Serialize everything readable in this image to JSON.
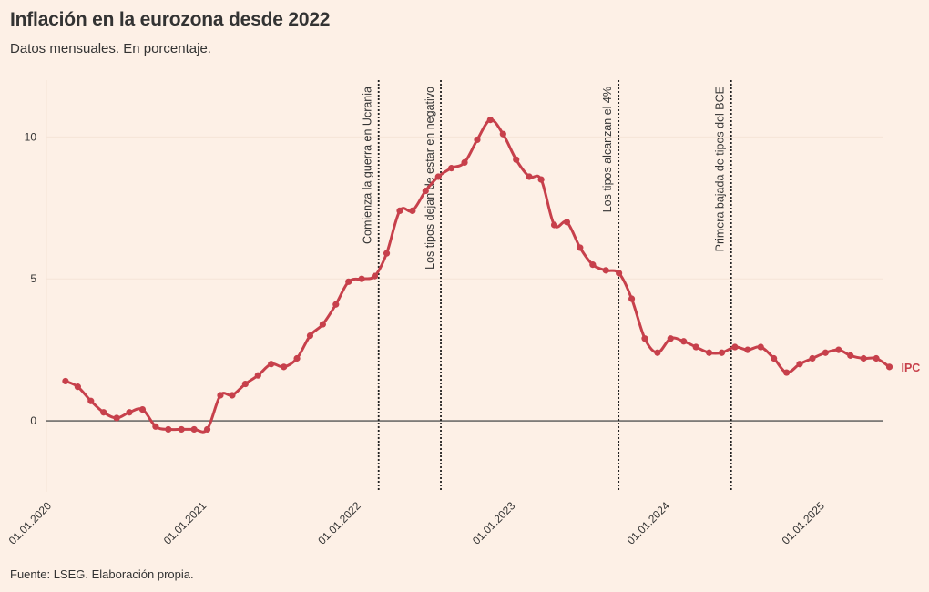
{
  "title": "Inflación en la eurozona desde 2022",
  "subtitle": "Datos mensuales. En porcentaje.",
  "source": "Fuente: LSEG. Elaboración propia.",
  "colors": {
    "background": "#fdf0e6",
    "series": "#c7404b",
    "zero_line": "#555555",
    "grid": "#f5e4d7",
    "event_line": "#222222",
    "text": "#333333"
  },
  "chart_data": {
    "type": "line",
    "title": "Inflación en la eurozona desde 2022",
    "subtitle": "Datos mensuales. En porcentaje.",
    "xlabel": "",
    "ylabel": "",
    "x_range": [
      "2020-01-01",
      "2025-06-01"
    ],
    "ylim": [
      -2.5,
      12
    ],
    "y_ticks": [
      0,
      5,
      10
    ],
    "x_ticks": [
      "01.01.2020",
      "01.01.2021",
      "01.01.2022",
      "01.01.2023",
      "01.01.2024",
      "01.01.2025"
    ],
    "grid": "horizontal",
    "series": [
      {
        "name": "IPC",
        "x": [
          "2020-02",
          "2020-03",
          "2020-04",
          "2020-05",
          "2020-06",
          "2020-07",
          "2020-08",
          "2020-09",
          "2020-10",
          "2020-11",
          "2020-12",
          "2021-01",
          "2021-02",
          "2021-03",
          "2021-04",
          "2021-05",
          "2021-06",
          "2021-07",
          "2021-08",
          "2021-09",
          "2021-10",
          "2021-11",
          "2021-12",
          "2022-01",
          "2022-02",
          "2022-03",
          "2022-04",
          "2022-05",
          "2022-06",
          "2022-07",
          "2022-08",
          "2022-09",
          "2022-10",
          "2022-11",
          "2022-12",
          "2023-01",
          "2023-02",
          "2023-03",
          "2023-04",
          "2023-05",
          "2023-06",
          "2023-07",
          "2023-08",
          "2023-09",
          "2023-10",
          "2023-11",
          "2023-12",
          "2024-01",
          "2024-02",
          "2024-03",
          "2024-04",
          "2024-05",
          "2024-06",
          "2024-07",
          "2024-08",
          "2024-09",
          "2024-10",
          "2024-11",
          "2024-12",
          "2025-01",
          "2025-02",
          "2025-03",
          "2025-04",
          "2025-05",
          "2025-06"
        ],
        "values": [
          1.4,
          1.2,
          0.7,
          0.3,
          0.1,
          0.3,
          0.4,
          -0.2,
          -0.3,
          -0.3,
          -0.3,
          -0.3,
          0.9,
          0.9,
          1.3,
          1.6,
          2.0,
          1.9,
          2.2,
          3.0,
          3.4,
          4.1,
          4.9,
          5.0,
          5.1,
          5.9,
          7.4,
          7.4,
          8.1,
          8.6,
          8.9,
          9.1,
          9.9,
          10.6,
          10.1,
          9.2,
          8.6,
          8.5,
          6.9,
          7.0,
          6.1,
          5.5,
          5.3,
          5.2,
          4.3,
          2.9,
          2.4,
          2.9,
          2.8,
          2.6,
          2.4,
          2.4,
          2.6,
          2.5,
          2.6,
          2.2,
          1.7,
          2.0,
          2.2,
          2.4,
          2.5,
          2.3,
          2.2,
          2.2,
          1.9
        ]
      }
    ],
    "annotations": [
      {
        "date": "2022-02-24",
        "label": "Comienza la guerra en Ucrania"
      },
      {
        "date": "2022-07-21",
        "label": "Los tipos dejan de estar en negativo"
      },
      {
        "date": "2023-09-14",
        "label": "Los tipos alcanzan el 4%"
      },
      {
        "date": "2024-06-06",
        "label": "Primera bajada de tipos del BCE"
      }
    ]
  }
}
